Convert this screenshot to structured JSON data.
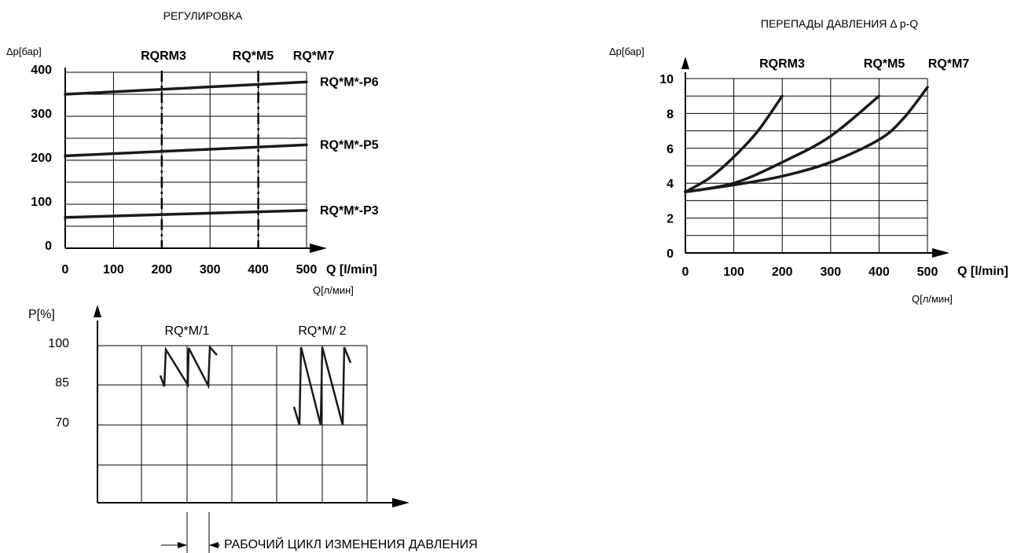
{
  "chart_data": [
    {
      "id": "regulation",
      "type": "line",
      "title": "РЕГУЛИРОВКА",
      "ylabel": "Δp[бар]",
      "xlabel": "Q [l/min]",
      "xlabel2": "Q[л/мин]",
      "xlim": [
        0,
        500
      ],
      "ylim": [
        0,
        400
      ],
      "xticks": [
        "0",
        "100",
        "200",
        "300",
        "400",
        "500"
      ],
      "yticks": [
        "0",
        "100",
        "200",
        "300",
        "400"
      ],
      "grid": true,
      "markers": [
        {
          "label": "RQRM3",
          "x": 200
        },
        {
          "label": "RQ*M5",
          "x": 400
        },
        {
          "label": "RQ*M7",
          "x": 500
        }
      ],
      "series": [
        {
          "name": "RQ*M*-P6",
          "x": [
            0,
            500
          ],
          "y": [
            350,
            378
          ]
        },
        {
          "name": "RQ*M*-P5",
          "x": [
            0,
            500
          ],
          "y": [
            210,
            235
          ]
        },
        {
          "name": "RQ*M*-P3",
          "x": [
            0,
            500
          ],
          "y": [
            70,
            86
          ]
        }
      ]
    },
    {
      "id": "pressure-drop",
      "type": "line",
      "title": "ПЕРЕПАДЫ ДАВЛЕНИЯ Δ p-Q",
      "ylabel": "Δp[бар]",
      "xlabel": "Q [l/min]",
      "xlabel2": "Q[л/мин]",
      "xlim": [
        0,
        500
      ],
      "ylim": [
        0,
        10
      ],
      "xticks": [
        "0",
        "100",
        "200",
        "300",
        "400",
        "500"
      ],
      "yticks": [
        "0",
        "2",
        "4",
        "6",
        "8",
        "10"
      ],
      "grid": true,
      "markers": [
        {
          "label": "RQRM3",
          "x": 200
        },
        {
          "label": "RQ*M5",
          "x": 400
        },
        {
          "label": "RQ*M7",
          "x": 500
        }
      ],
      "series": [
        {
          "x": [
            0,
            50,
            100,
            150,
            200
          ],
          "y": [
            3.5,
            4.3,
            5.5,
            7.0,
            9.0
          ]
        },
        {
          "x": [
            0,
            100,
            200,
            300,
            400
          ],
          "y": [
            3.5,
            4.0,
            5.2,
            6.7,
            9.0
          ]
        },
        {
          "x": [
            0,
            100,
            200,
            300,
            400,
            450,
            500
          ],
          "y": [
            3.5,
            3.9,
            4.4,
            5.2,
            6.5,
            7.7,
            9.5
          ]
        }
      ]
    },
    {
      "id": "pressure-cycle",
      "type": "line",
      "ylabel": "P[%]",
      "yticks": [
        "100",
        "85",
        "70"
      ],
      "yvalues": [
        100,
        85,
        70
      ],
      "grid": true,
      "groups": [
        {
          "label": "RQ*M/1",
          "min": 85,
          "max": 100
        },
        {
          "label": "RQ*M/ 2",
          "min": 70,
          "max": 100
        }
      ],
      "annotation": "РАБОЧИЙ ЦИКЛ ИЗМЕНЕНИЯ ДАВЛЕНИЯ"
    }
  ]
}
